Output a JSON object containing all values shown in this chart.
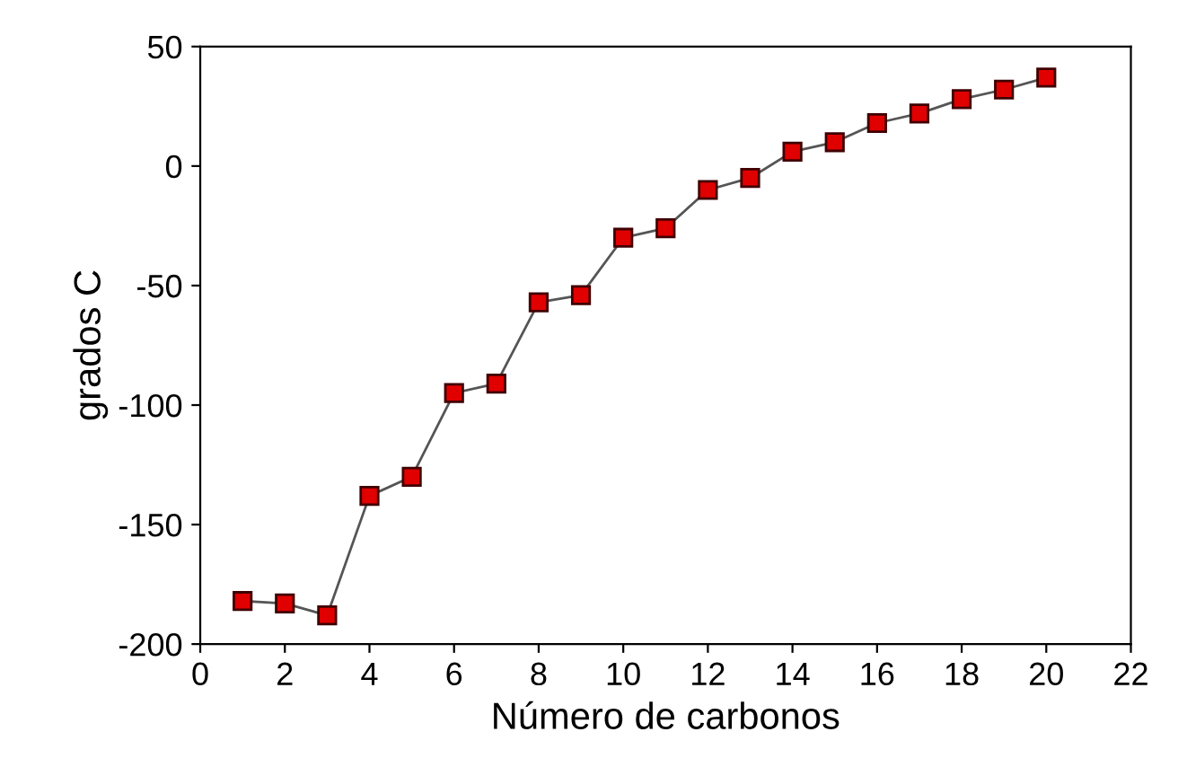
{
  "chart_data": {
    "type": "line",
    "xlabel": "Número de carbonos",
    "ylabel": "grados C",
    "x": [
      1,
      2,
      3,
      4,
      5,
      6,
      7,
      8,
      9,
      10,
      11,
      12,
      13,
      14,
      15,
      16,
      17,
      18,
      19,
      20
    ],
    "series": [
      {
        "color": "#e00000",
        "values": [
          -182,
          -183,
          -188,
          -138,
          -130,
          -95,
          -91,
          -57,
          -54,
          -30,
          -26,
          -10,
          -5,
          6,
          10,
          18,
          22,
          28,
          32,
          37
        ]
      }
    ],
    "xlim": [
      0,
      22
    ],
    "xticks": [
      0,
      2,
      4,
      6,
      8,
      10,
      12,
      14,
      16,
      18,
      20,
      22
    ],
    "ylim": [
      -200,
      50
    ],
    "yticks": [
      -200,
      -150,
      -100,
      -50,
      0,
      50
    ],
    "marker": "square",
    "line_style": "solid",
    "grid": false,
    "legend": false
  }
}
